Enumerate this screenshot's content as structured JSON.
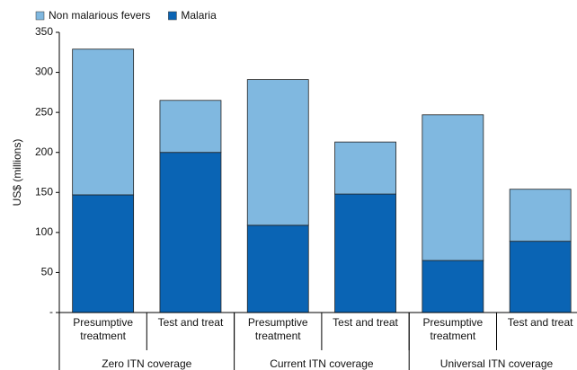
{
  "chart_data": {
    "type": "stacked_bar",
    "y_label": "US$ (millions)",
    "categories": [
      "Presumptive treatment",
      "Test and treat",
      "Presumptive treatment",
      "Test and treat",
      "Presumptive treatment",
      "Test and treat"
    ],
    "groups": [
      "Zero ITN coverage",
      "Current ITN coverage",
      "Universal ITN coverage"
    ],
    "series": [
      {
        "name": "Malaria",
        "color": "#0a64b4",
        "values": [
          147,
          200,
          109,
          148,
          65,
          89
        ]
      },
      {
        "name": "Non malarious fevers",
        "color": "#80b8e0",
        "values": [
          182,
          65,
          182,
          65,
          182,
          65
        ]
      }
    ],
    "legend_order": [
      1,
      0
    ],
    "ylim": [
      0,
      350
    ],
    "yticks": [
      {
        "value": 0,
        "label": "-"
      },
      50,
      100,
      150,
      200,
      250,
      300,
      350
    ]
  }
}
